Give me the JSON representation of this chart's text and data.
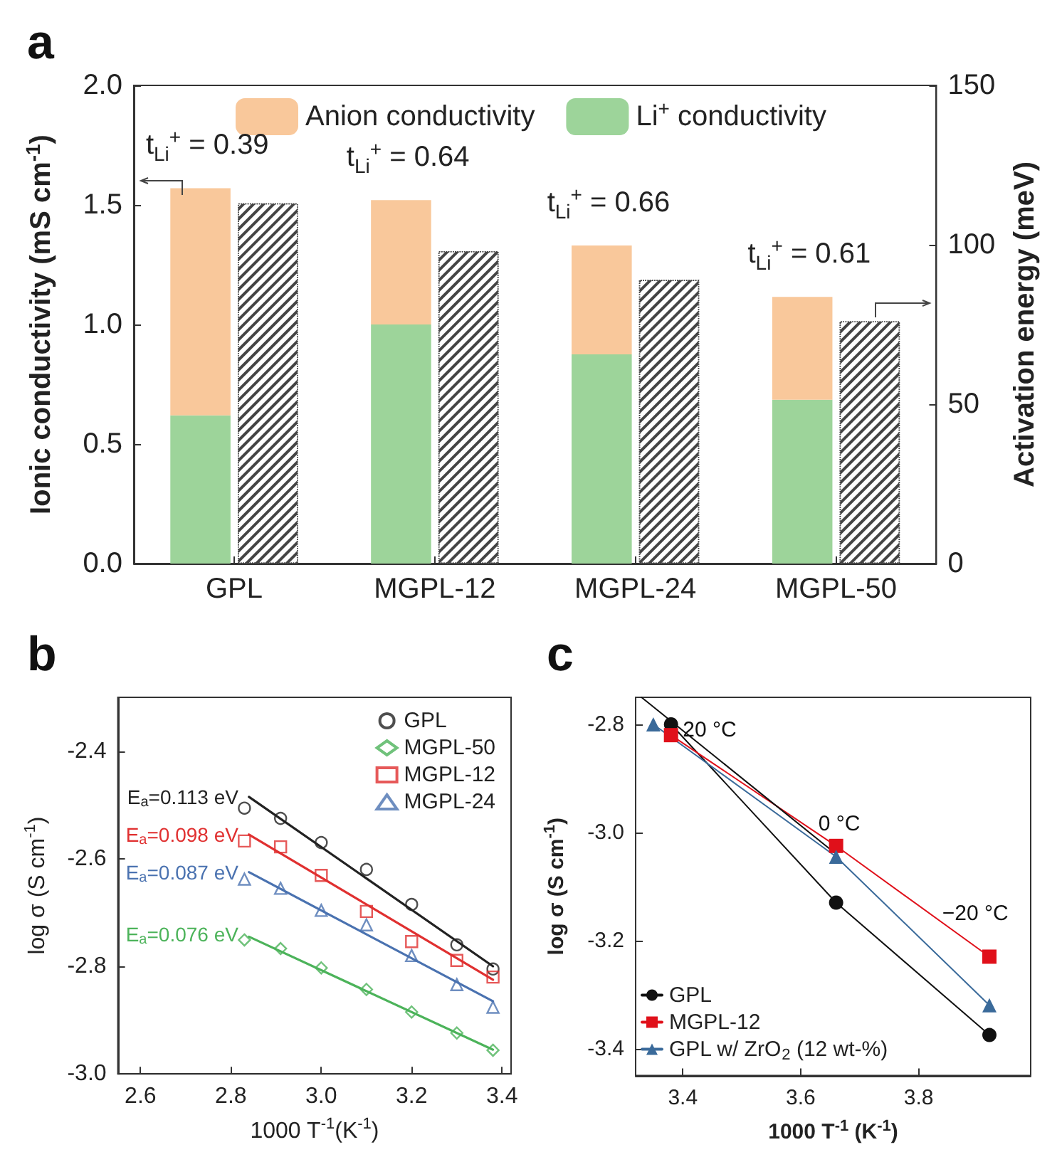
{
  "chart_data": [
    {
      "type": "bar",
      "title": "a",
      "categories": [
        "GPL",
        "MGPL-12",
        "MGPL-24",
        "MGPL-50"
      ],
      "ylabel": "Ionic conductivity (mS cm$^{-1}$)",
      "y2label": "Activation energy (meV)",
      "stacked": true,
      "legend": "top",
      "ylim": [
        0,
        2
      ],
      "yticks": [
        {
          "value": 0,
          "label": "0.0"
        },
        0.5,
        {
          "value": 1,
          "label": "1.0"
        },
        1.5,
        {
          "value": 2,
          "label": "2.0"
        }
      ],
      "y2lim": [
        0,
        150
      ],
      "y2ticks": [
        0,
        50,
        100,
        150
      ],
      "series": [
        {
          "name": "Li$^{+}$ conductivity",
          "color": "#9dd49a",
          "values": [
            0.62,
            1.0,
            0.875,
            0.685
          ]
        },
        {
          "name": "Anion conductivity",
          "color": "#f9c89b",
          "values": [
            0.95,
            0.52,
            0.455,
            0.43
          ]
        },
        {
          "color": "#444444",
          "axis": "y2",
          "values": [
            113,
            98,
            89,
            76
          ]
        }
      ],
      "annotations": [
        "t$_{Li}$$^{+}$ = 0.39",
        "t$_{Li}$$^{+}$ = 0.64",
        "t$_{Li}$$^{+}$ = 0.66",
        "t$_{Li}$$^{+}$ = 0.61"
      ]
    },
    {
      "type": "scatter",
      "title": "b",
      "xlabel": "1000 T$^{-1}$(K$^{-1}$)",
      "ylabel": "log σ (S cm$^{-1}$)",
      "x": [
        2.83,
        2.91,
        3.0,
        3.1,
        3.2,
        3.3,
        3.38
      ],
      "xlim": [
        2.55,
        3.42
      ],
      "xticks": [
        2.6,
        2.8,
        {
          "value": 3,
          "label": "3.0"
        },
        3.2,
        3.4
      ],
      "ylim": [
        -3,
        -2.3
      ],
      "yticks": [
        {
          "value": -3,
          "label": "-3.0"
        },
        -2.8,
        -2.6,
        -2.4
      ],
      "legend": "top right",
      "series": [
        {
          "name": "GPL",
          "color": "#222222",
          "marker": "circle",
          "values": [
            -2.506,
            -2.525,
            -2.57,
            -2.62,
            -2.685,
            -2.76,
            -2.805
          ]
        },
        {
          "name": "MGPL-50",
          "color": "#4cb35a",
          "marker": "diamond",
          "values": [
            -2.751,
            -2.767,
            -2.803,
            -2.843,
            -2.885,
            -2.924,
            -2.956
          ]
        },
        {
          "name": "MGPL-12",
          "color": "#e03030",
          "marker": "square",
          "values": [
            -2.567,
            -2.578,
            -2.631,
            -2.698,
            -2.754,
            -2.789,
            -2.82
          ]
        },
        {
          "name": "MGPL-24",
          "color": "#4a72b0",
          "marker": "triangle",
          "values": [
            -2.638,
            -2.655,
            -2.696,
            -2.723,
            -2.78,
            -2.834,
            -2.876
          ]
        },
        {
          "type": "line",
          "color": "#222222",
          "marker": "none",
          "x": [
            2.84,
            3.38
          ],
          "values": [
            -2.485,
            -2.8
          ]
        },
        {
          "type": "line",
          "color": "#4cb35a",
          "marker": "none",
          "x": [
            2.84,
            3.38
          ],
          "values": [
            -2.745,
            -2.955
          ]
        },
        {
          "type": "line",
          "color": "#e03030",
          "marker": "none",
          "x": [
            2.84,
            3.38
          ],
          "values": [
            -2.555,
            -2.825
          ]
        },
        {
          "type": "line",
          "color": "#4a72b0",
          "marker": "none",
          "x": [
            2.84,
            3.38
          ],
          "values": [
            -2.625,
            -2.865
          ]
        }
      ],
      "annotations": [
        {
          "text": "E$_{a}$=0.113 eV",
          "x": 2.83,
          "y": -2.485
        },
        {
          "text": "E$_{a}$=0.098 eV",
          "x": 2.83,
          "y": -2.555
        },
        {
          "text": "E$_{a}$=0.087 eV",
          "x": 2.83,
          "y": -2.625
        },
        {
          "text": "E$_{a}$=0.076 eV",
          "x": 2.83,
          "y": -2.74
        }
      ]
    },
    {
      "type": "line",
      "title": "c",
      "xlabel": "1000 T$^{-1}$ (K$^{-1}$)",
      "ylabel": "log σ (S cm$^{-1}$)",
      "xlim": [
        3.32,
        3.99
      ],
      "xticks": [
        3.4,
        3.6,
        3.8
      ],
      "ylim": [
        -3.45,
        -2.75
      ],
      "yticks": [
        -3.4,
        -3.2,
        {
          "value": -3,
          "label": "-3.0"
        },
        -2.8
      ],
      "legend": "bottom left",
      "series": [
        {
          "name": "GPL",
          "color": "#111111",
          "marker": "circle",
          "x": [
            3.38,
            3.66,
            3.92
          ],
          "values": [
            -2.8,
            -3.13,
            -3.375
          ]
        },
        {
          "name": "MGPL-12",
          "color": "#e0101a",
          "marker": "square",
          "x": [
            3.38,
            3.66,
            3.92
          ],
          "values": [
            -2.82,
            -3.025,
            -3.23
          ]
        },
        {
          "name": "GPL w/ ZrO$_{2}$ (12 wt-%)",
          "color": "#3a6a9a",
          "marker": "triangle",
          "x": [
            3.35,
            3.66,
            3.92
          ],
          "values": [
            -2.8,
            -3.045,
            -3.32
          ]
        },
        {
          "color": "#111111",
          "marker": "none",
          "x": [
            3.33,
            3.66
          ],
          "values": [
            -2.75,
            -3.04
          ]
        }
      ],
      "annotations": [
        {
          "text": "20 °C",
          "x": 3.4,
          "y": -2.81
        },
        {
          "text": "0 °C",
          "x": 3.63,
          "y": -2.985
        },
        {
          "text": "−20 °C",
          "x": 3.84,
          "y": -3.15
        }
      ]
    }
  ]
}
